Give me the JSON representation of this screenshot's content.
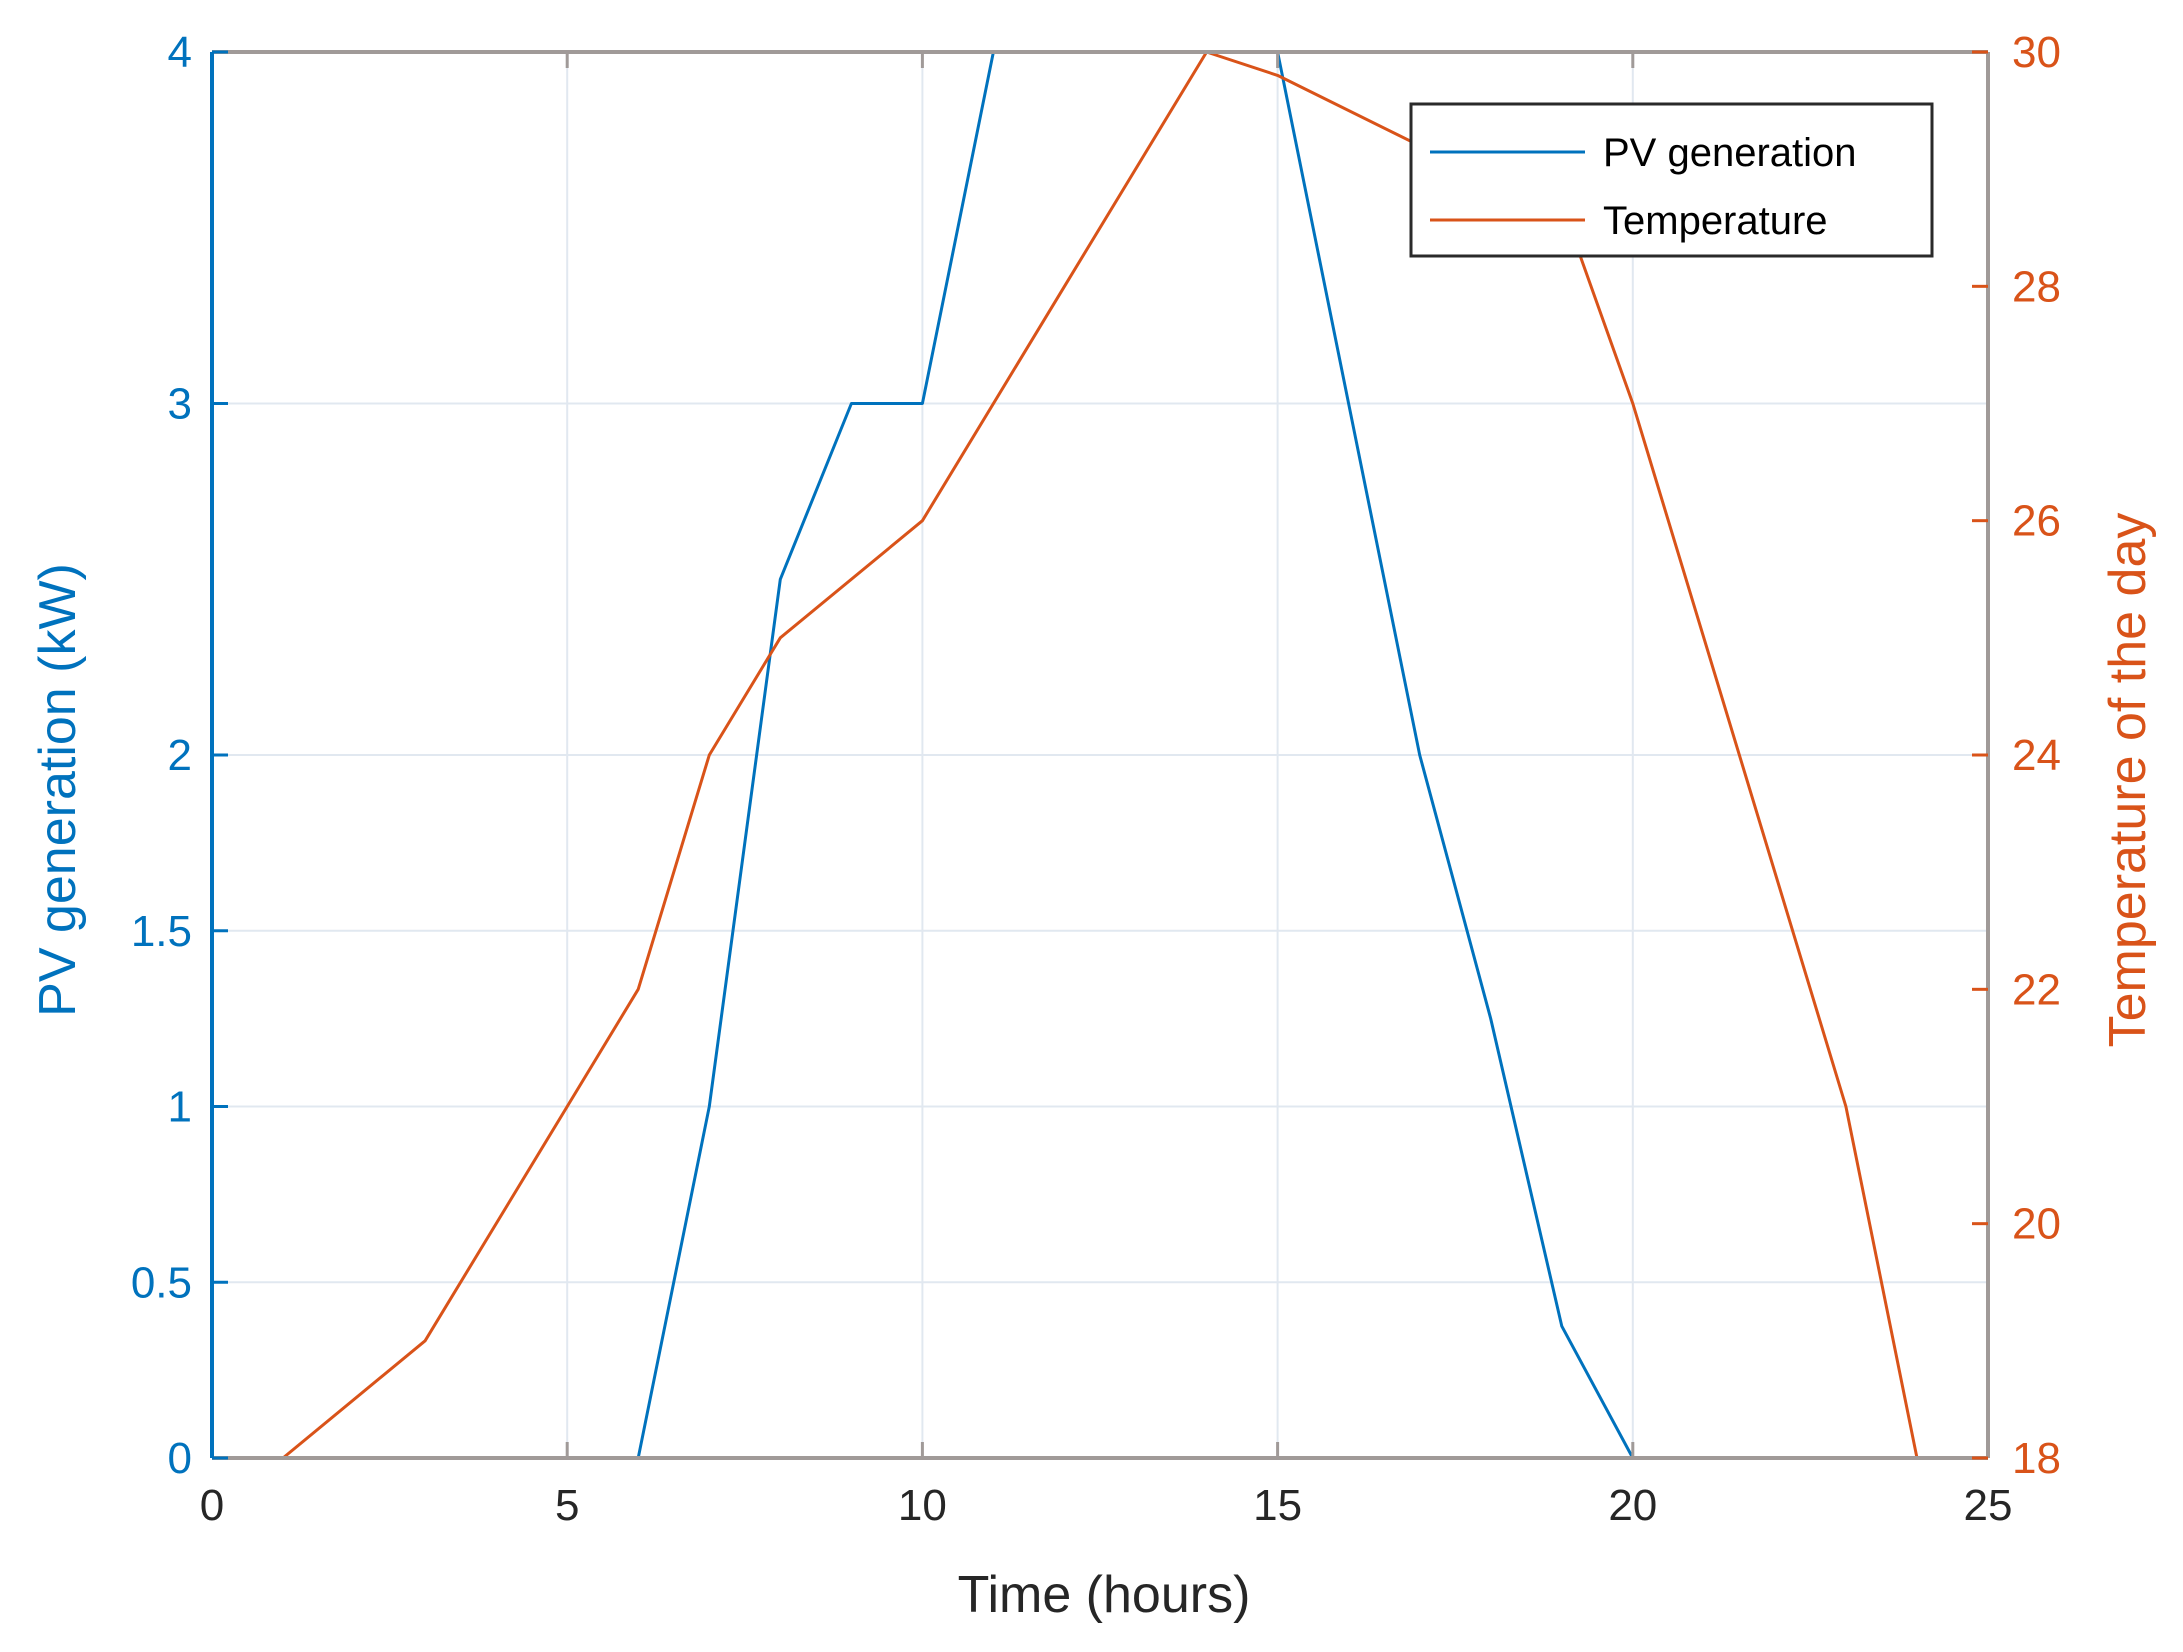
{
  "chart_data": {
    "type": "line",
    "xlabel": "Time (hours)",
    "ylabel_left": "PV generation (kW)",
    "ylabel_right": "Temperature of the day",
    "xlim": [
      0,
      25
    ],
    "ylim_left": [
      0,
      4
    ],
    "ylim_right": [
      18,
      30
    ],
    "x_ticks": [
      "0",
      "5",
      "10",
      "15",
      "20",
      "25"
    ],
    "y_ticks_left": [
      "0",
      "0.5",
      "1",
      "1.5",
      "2",
      "3",
      "4"
    ],
    "y_ticks_right": [
      "18",
      "20",
      "22",
      "24",
      "26",
      "28",
      "30"
    ],
    "grid": true,
    "legend_position": "top-right",
    "colors": {
      "pv": "#0072BD",
      "temperature": "#D95319",
      "grid": "#e1e8f0",
      "axis_box": "#a09a98"
    },
    "series": [
      {
        "name": "PV generation",
        "axis": "left",
        "x": [
          0,
          1,
          2,
          3,
          4,
          5,
          6,
          7,
          8,
          9,
          10,
          11,
          12,
          13,
          14,
          15,
          16,
          17,
          18,
          19,
          20,
          21,
          22,
          23,
          24
        ],
        "y": [
          0,
          0,
          0,
          0,
          0,
          0,
          0,
          1,
          2.5,
          3,
          3,
          4,
          4,
          4,
          4,
          4,
          3,
          2,
          1.25,
          0.375,
          0,
          0,
          0,
          0,
          0
        ]
      },
      {
        "name": "Temperature",
        "axis": "right",
        "x": [
          1,
          3,
          5,
          6,
          7,
          8,
          10,
          12,
          14,
          15,
          17,
          19,
          20,
          23,
          24
        ],
        "y": [
          18,
          19,
          21,
          22,
          24,
          25,
          26,
          28,
          30,
          29.8,
          29.2,
          28.7,
          27,
          21,
          18
        ]
      }
    ]
  }
}
